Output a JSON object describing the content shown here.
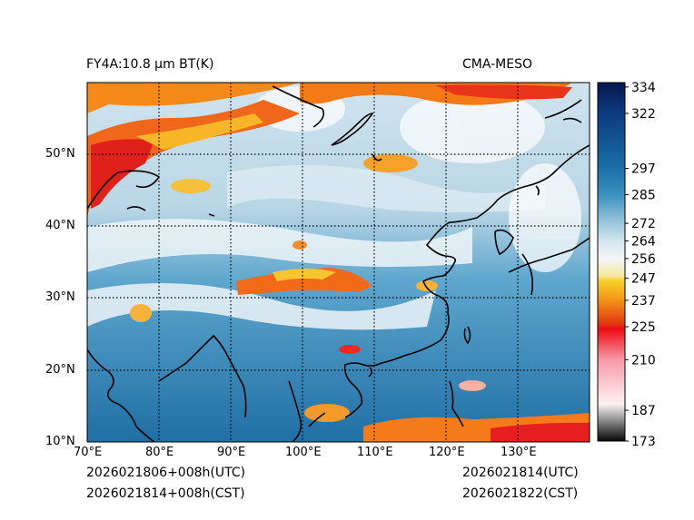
{
  "header": {
    "title_left": "FY4A:10.8 µm BT(K)",
    "title_right": "CMA-MESO"
  },
  "footer": {
    "left_utc": "2026021806+008h(UTC)",
    "left_cst": "2026021814+008h(CST)",
    "right_utc": "2026021814(UTC)",
    "right_cst": "2026021822(CST)"
  },
  "map": {
    "lon_range": [
      70,
      140
    ],
    "lat_range": [
      10,
      60
    ],
    "lon_ticks": [
      "70°E",
      "80°E",
      "90°E",
      "100°E",
      "110°E",
      "120°E",
      "130°E"
    ],
    "lat_ticks": [
      "10°N",
      "20°N",
      "30°N",
      "40°N",
      "50°N"
    ],
    "grid_style": "dotted",
    "colors": {
      "clear_surface": "#1f6fa5",
      "cloud_mid": "#cfe3ee",
      "cold_cloud": "#f05a10",
      "coast": "#000000"
    }
  },
  "colorbar": {
    "label_values": [
      "334",
      "322",
      "297",
      "285",
      "272",
      "264",
      "256",
      "247",
      "237",
      "225",
      "210",
      "187",
      "173"
    ],
    "value_range": [
      173,
      336
    ],
    "stops": [
      {
        "v": 336,
        "c": "#08164d"
      },
      {
        "v": 322,
        "c": "#0b3b80"
      },
      {
        "v": 297,
        "c": "#1b6fa6"
      },
      {
        "v": 285,
        "c": "#3a91be"
      },
      {
        "v": 272,
        "c": "#9cc7dc"
      },
      {
        "v": 264,
        "c": "#d4e6ef"
      },
      {
        "v": 256,
        "c": "#f2f6f8"
      },
      {
        "v": 248,
        "c": "#f6e9a0"
      },
      {
        "v": 246,
        "c": "#f7d22a"
      },
      {
        "v": 237,
        "c": "#f49218"
      },
      {
        "v": 226,
        "c": "#e03410"
      },
      {
        "v": 224,
        "c": "#ee0a14"
      },
      {
        "v": 210,
        "c": "#f79aa6"
      },
      {
        "v": 190,
        "c": "#fff1f3"
      },
      {
        "v": 187,
        "c": "#cfcfcf"
      },
      {
        "v": 173,
        "c": "#050505"
      }
    ]
  }
}
